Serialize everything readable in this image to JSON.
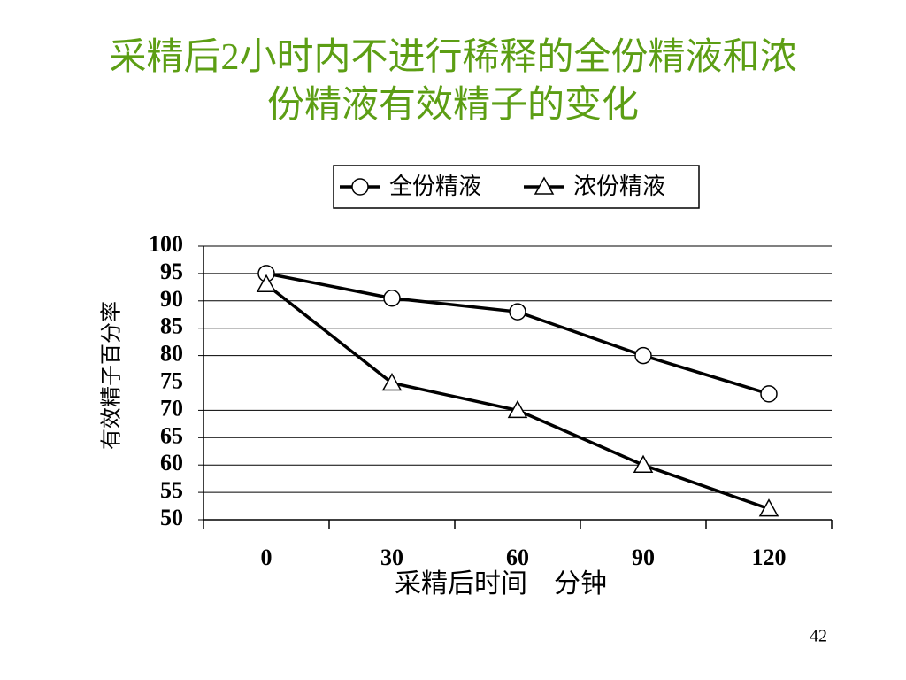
{
  "chart_data": {
    "type": "line",
    "title": "采精后2小时内不进行稀释的全份精液和浓份精液有效精子的变化",
    "x_label": "采精后时间　分钟",
    "y_label": "有效精子百分率",
    "categories": [
      "0",
      "30",
      "60",
      "90",
      "120"
    ],
    "series": [
      {
        "name": "全份精液",
        "color": "#000000",
        "marker": "circle",
        "values": [
          95,
          90.5,
          88,
          80,
          73
        ]
      },
      {
        "name": "浓份精液",
        "color": "#000000",
        "marker": "triangle",
        "values": [
          93,
          75,
          70,
          60,
          52
        ]
      }
    ],
    "ylim": [
      50,
      100
    ],
    "yticks": [
      50,
      55,
      60,
      65,
      70,
      75,
      80,
      85,
      90,
      95,
      100
    ],
    "grid": true,
    "legend": "top"
  },
  "page_number": "42"
}
